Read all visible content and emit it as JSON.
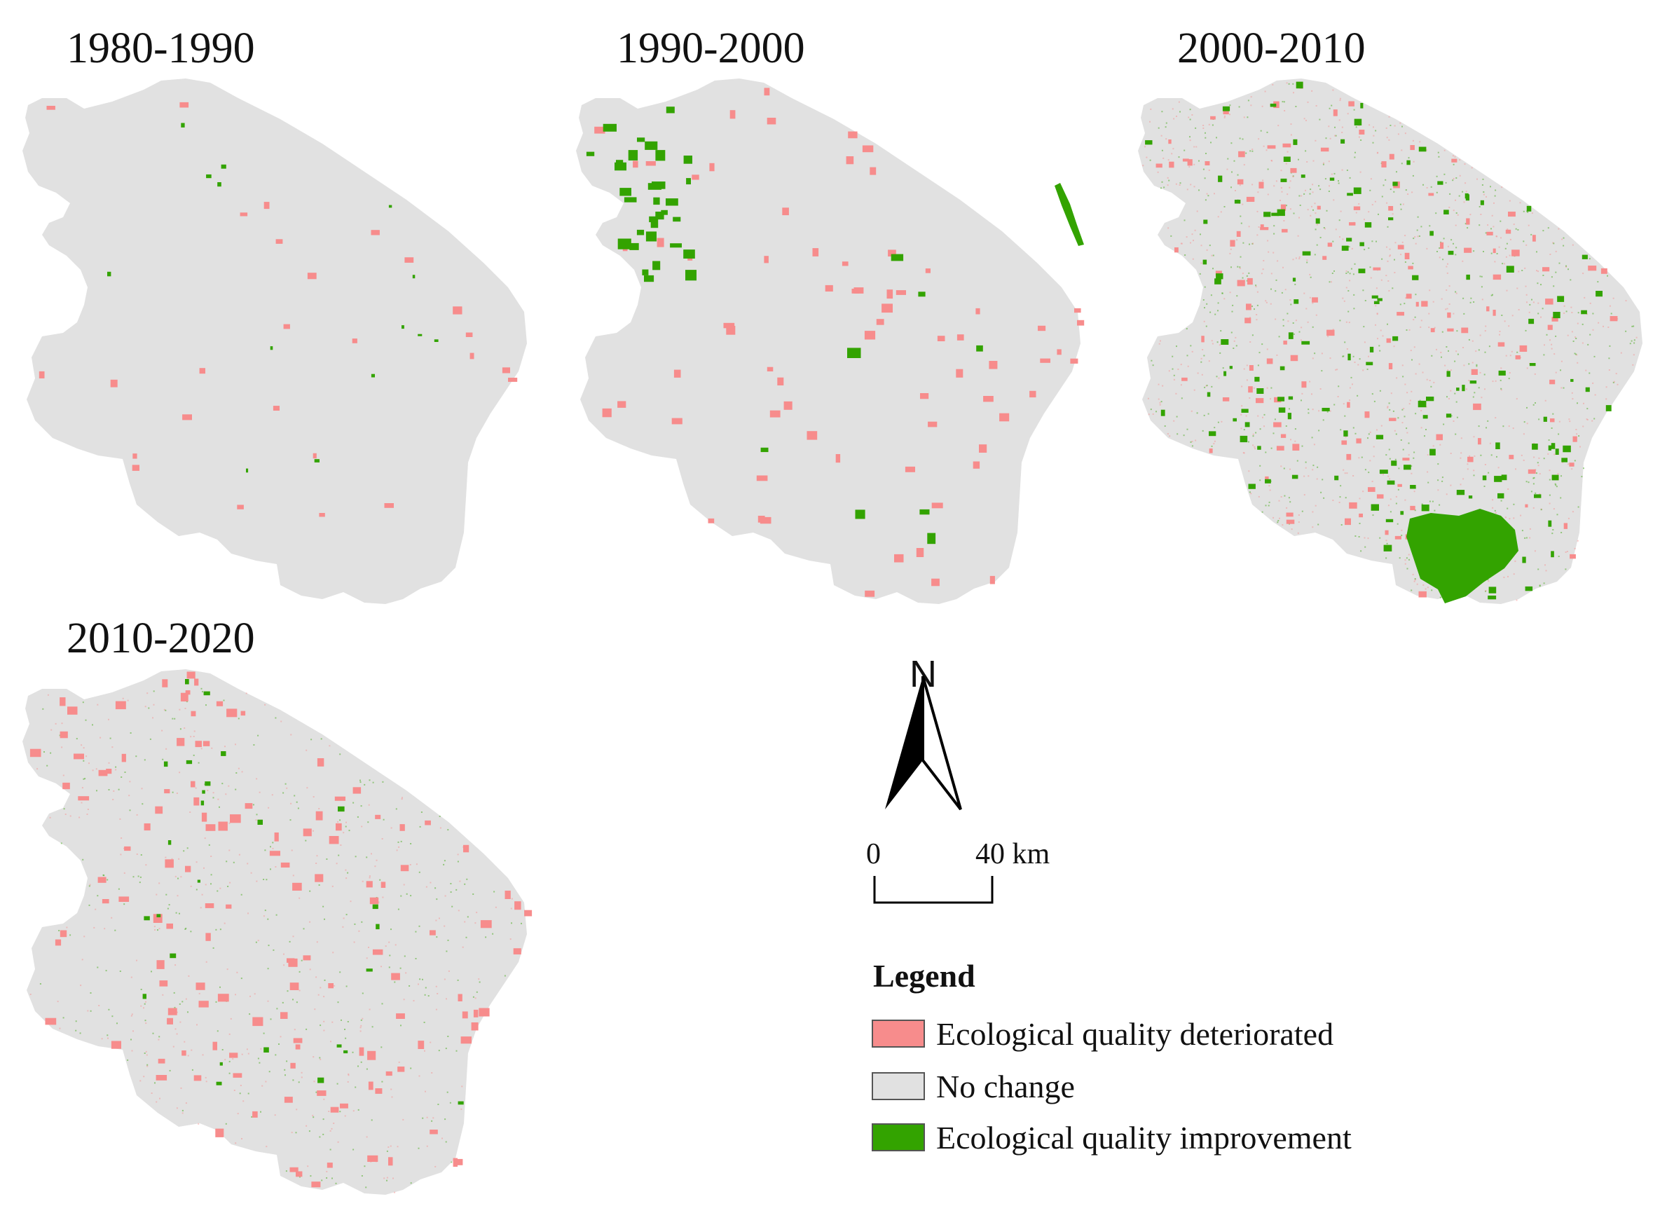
{
  "figure": {
    "panels": [
      {
        "title": "1980-1990",
        "pattern": "sparse"
      },
      {
        "title": "1990-2000",
        "pattern": "west-green"
      },
      {
        "title": "2000-2010",
        "pattern": "dense"
      },
      {
        "title": "2010-2020",
        "pattern": "scattered-red"
      }
    ],
    "north_arrow": {
      "label": "N"
    },
    "scale_bar": {
      "start": "0",
      "end": "40 km"
    },
    "legend": {
      "title": "Legend",
      "items": [
        {
          "label": "Ecological quality deteriorated",
          "color": "#f78c8c",
          "icon": "legend-swatch-deteriorated"
        },
        {
          "label": "No change",
          "color": "#e1e1e1",
          "icon": "legend-swatch-no-change"
        },
        {
          "label": "Ecological quality improvement",
          "color": "#33a300",
          "icon": "legend-swatch-improvement"
        }
      ]
    },
    "colors": {
      "no_change": "#e1e1e1",
      "deteriorated": "#f78c8c",
      "improvement": "#33a300"
    }
  }
}
